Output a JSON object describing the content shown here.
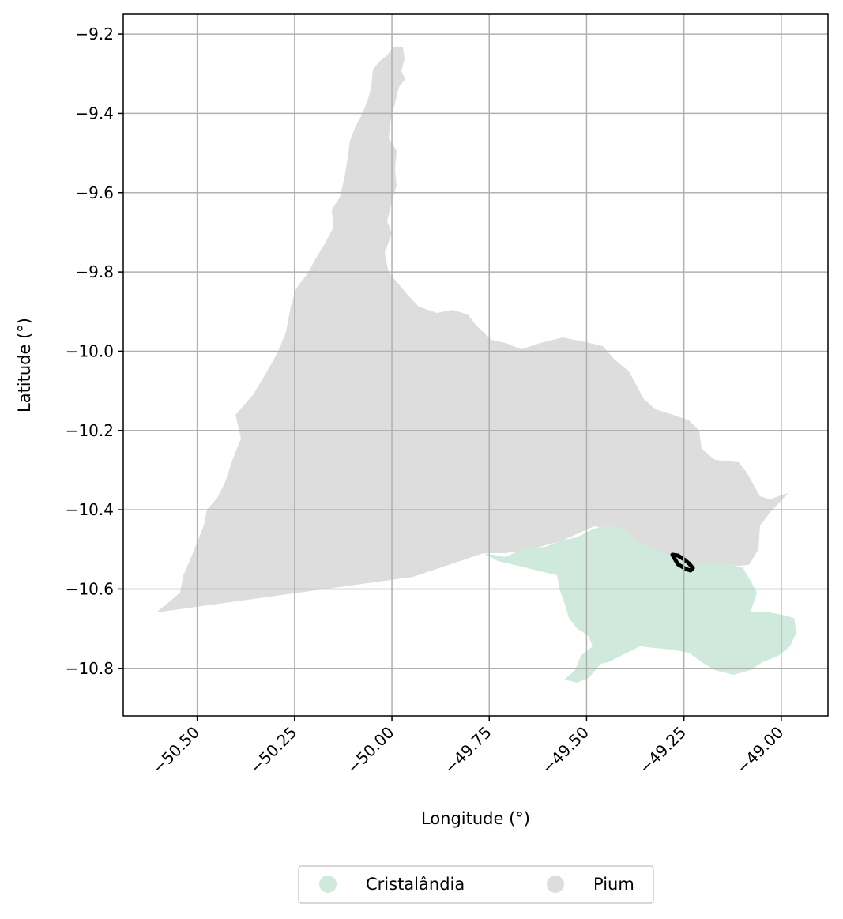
{
  "map": {
    "xlabel": "Longitude (°)",
    "ylabel": "Latitude (°)",
    "xlim": [
      -50.69,
      -48.88
    ],
    "ylim": [
      -10.92,
      -9.15
    ],
    "grid": true,
    "x_ticks": [
      "−50.50",
      "−50.25",
      "−50.00",
      "−49.75",
      "−49.50",
      "−49.25",
      "−49.00"
    ],
    "x_tick_values": [
      -50.5,
      -50.25,
      -50.0,
      -49.75,
      -49.5,
      -49.25,
      -49.0
    ],
    "y_ticks": [
      "−9.2",
      "−9.4",
      "−9.6",
      "−9.8",
      "−10.0",
      "−10.2",
      "−10.4",
      "−10.6",
      "−10.8"
    ],
    "y_tick_values": [
      -9.2,
      -9.4,
      -9.6,
      -9.8,
      -10.0,
      -10.2,
      -10.4,
      -10.6,
      -10.8
    ],
    "legend_position": "bottom-center",
    "legend": [
      {
        "label": "Cristalândia",
        "color": "#cfeadd"
      },
      {
        "label": "Pium",
        "color": "#dddddd"
      }
    ],
    "regions": [
      {
        "name": "Pium",
        "color": "#dddddd"
      },
      {
        "name": "Cristalândia",
        "color": "#cfeadd"
      }
    ],
    "highlight_outline_color": "#000000"
  }
}
